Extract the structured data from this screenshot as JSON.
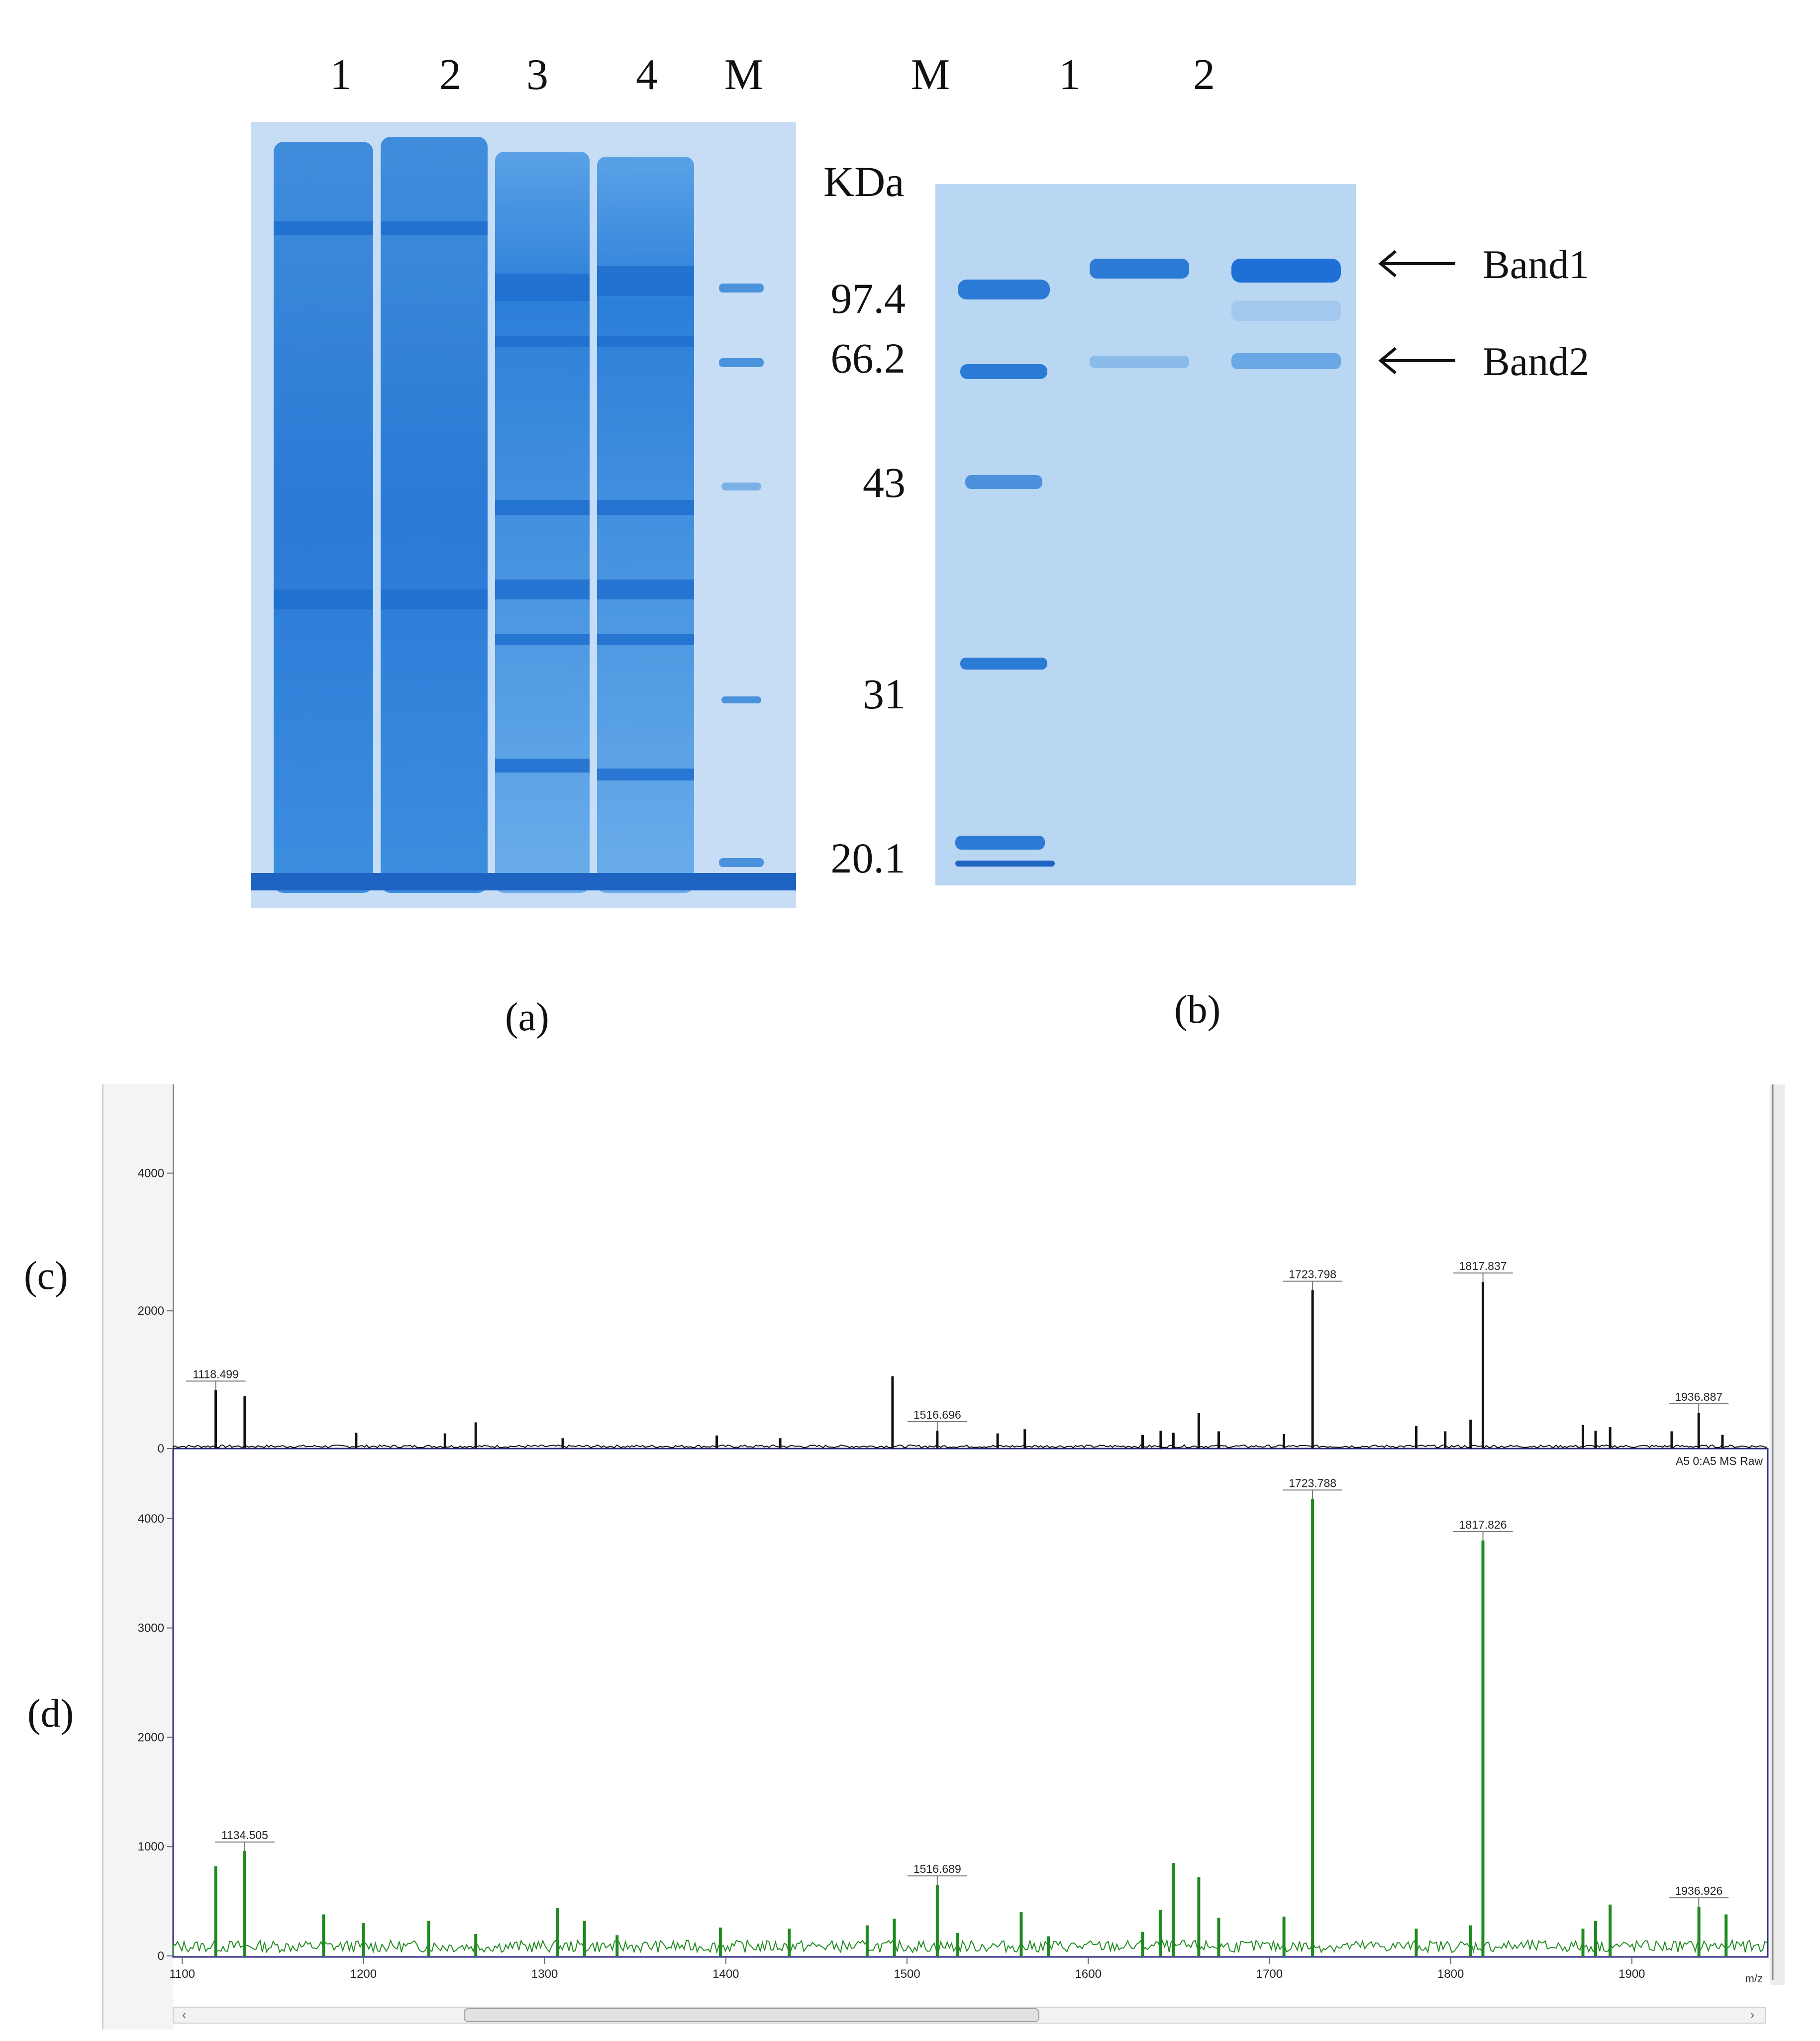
{
  "gel_a": {
    "lane_labels": [
      "1",
      "2",
      "3",
      "4",
      "M"
    ],
    "panel_label": "(a)"
  },
  "gel_b": {
    "lane_labels": [
      "M",
      "1",
      "2"
    ],
    "panel_label": "(b)",
    "unit_label": "KDa",
    "marker_weights": [
      "97.4",
      "66.2",
      "43",
      "31",
      "20.1"
    ],
    "band_labels": [
      "Band1",
      "Band2"
    ]
  },
  "spectra": {
    "panel_c_label": "(c)",
    "panel_d_label": "(d)",
    "x_axis_unit": "m/z",
    "header_text": "A5 0:A5 MS Raw",
    "colors": {
      "c": "#111111",
      "d": "#1f8a1f",
      "frame": "#2b2b80"
    },
    "chart_data": [
      {
        "type": "line",
        "name_ref": "(c)",
        "xlim": [
          1095,
          1975
        ],
        "ylim": [
          0,
          5000
        ],
        "x_ticks": [
          1100,
          1200,
          1300,
          1400,
          1500,
          1600,
          1700,
          1800,
          1900
        ],
        "y_ticks": [
          "4000",
          "2000",
          "0"
        ],
        "y_tick_values": [
          4000,
          2000,
          0
        ],
        "peaks": [
          {
            "x": 1118.5,
            "y": 850
          },
          {
            "x": 1134.5,
            "y": 760
          },
          {
            "x": 1196,
            "y": 230
          },
          {
            "x": 1245,
            "y": 220
          },
          {
            "x": 1262,
            "y": 380
          },
          {
            "x": 1310,
            "y": 150
          },
          {
            "x": 1395,
            "y": 190
          },
          {
            "x": 1430,
            "y": 150
          },
          {
            "x": 1492,
            "y": 1050
          },
          {
            "x": 1516.7,
            "y": 260
          },
          {
            "x": 1550,
            "y": 220
          },
          {
            "x": 1565,
            "y": 280
          },
          {
            "x": 1630,
            "y": 200
          },
          {
            "x": 1640,
            "y": 260
          },
          {
            "x": 1647,
            "y": 230
          },
          {
            "x": 1661,
            "y": 520
          },
          {
            "x": 1672,
            "y": 250
          },
          {
            "x": 1708,
            "y": 210
          },
          {
            "x": 1723.8,
            "y": 2300
          },
          {
            "x": 1781,
            "y": 330
          },
          {
            "x": 1797,
            "y": 250
          },
          {
            "x": 1811,
            "y": 420
          },
          {
            "x": 1817.8,
            "y": 2420
          },
          {
            "x": 1873,
            "y": 340
          },
          {
            "x": 1880,
            "y": 260
          },
          {
            "x": 1888,
            "y": 310
          },
          {
            "x": 1922,
            "y": 250
          },
          {
            "x": 1936.9,
            "y": 520
          },
          {
            "x": 1950,
            "y": 200
          }
        ],
        "annotations": [
          {
            "x": 1118.499,
            "y": 850,
            "text": "1118.499"
          },
          {
            "x": 1516.696,
            "y": 260,
            "text": "1516.696"
          },
          {
            "x": 1723.798,
            "y": 2300,
            "text": "1723.798"
          },
          {
            "x": 1817.837,
            "y": 2420,
            "text": "1817.837"
          },
          {
            "x": 1936.887,
            "y": 520,
            "text": "1936.887"
          }
        ]
      },
      {
        "type": "line",
        "name_ref": "(d)",
        "xlim": [
          1095,
          1975
        ],
        "ylim": [
          0,
          4400
        ],
        "x_ticks": [
          1100,
          1200,
          1300,
          1400,
          1500,
          1600,
          1700,
          1800,
          1900
        ],
        "x_tick_labels": [
          "1100",
          "1200",
          "1300",
          "1400",
          "1500",
          "1600",
          "1700",
          "1800",
          "1900"
        ],
        "y_ticks": [
          "4000",
          "3000",
          "2000",
          "1000",
          "0"
        ],
        "y_tick_values": [
          4000,
          3000,
          2000,
          1000,
          0
        ],
        "peaks": [
          {
            "x": 1118.5,
            "y": 820
          },
          {
            "x": 1134.5,
            "y": 960
          },
          {
            "x": 1178,
            "y": 380
          },
          {
            "x": 1200,
            "y": 300
          },
          {
            "x": 1236,
            "y": 320
          },
          {
            "x": 1262,
            "y": 200
          },
          {
            "x": 1307,
            "y": 440
          },
          {
            "x": 1322,
            "y": 320
          },
          {
            "x": 1340,
            "y": 190
          },
          {
            "x": 1397,
            "y": 260
          },
          {
            "x": 1435,
            "y": 250
          },
          {
            "x": 1478,
            "y": 280
          },
          {
            "x": 1493,
            "y": 340
          },
          {
            "x": 1516.7,
            "y": 650
          },
          {
            "x": 1528,
            "y": 210
          },
          {
            "x": 1563,
            "y": 400
          },
          {
            "x": 1578,
            "y": 180
          },
          {
            "x": 1630,
            "y": 220
          },
          {
            "x": 1640,
            "y": 420
          },
          {
            "x": 1647,
            "y": 850
          },
          {
            "x": 1661,
            "y": 720
          },
          {
            "x": 1672,
            "y": 350
          },
          {
            "x": 1708,
            "y": 360
          },
          {
            "x": 1723.8,
            "y": 4180
          },
          {
            "x": 1781,
            "y": 250
          },
          {
            "x": 1811,
            "y": 280
          },
          {
            "x": 1817.8,
            "y": 3800
          },
          {
            "x": 1873,
            "y": 250
          },
          {
            "x": 1880,
            "y": 320
          },
          {
            "x": 1888,
            "y": 470
          },
          {
            "x": 1937,
            "y": 450
          },
          {
            "x": 1952,
            "y": 380
          }
        ],
        "annotations": [
          {
            "x": 1134.505,
            "y": 960,
            "text": "1134.505"
          },
          {
            "x": 1516.689,
            "y": 650,
            "text": "1516.689"
          },
          {
            "x": 1723.788,
            "y": 4180,
            "text": "1723.788"
          },
          {
            "x": 1817.826,
            "y": 3800,
            "text": "1817.826"
          },
          {
            "x": 1936.926,
            "y": 450,
            "text": "1936.926"
          }
        ]
      }
    ]
  }
}
